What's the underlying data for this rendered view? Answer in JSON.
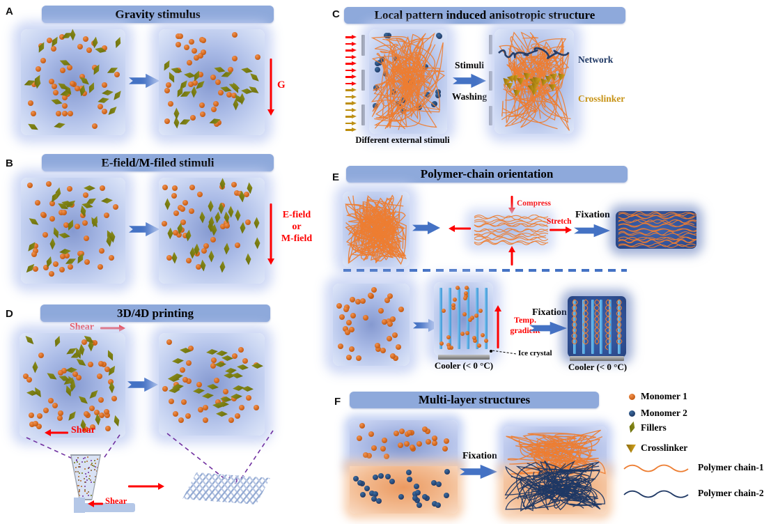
{
  "panels": {
    "A": {
      "id": "A",
      "title": "Gravity stimulus",
      "gravity_label": "G"
    },
    "B": {
      "id": "B",
      "title": "E-field/M-filed stimuli",
      "field_lines": [
        "E-field",
        "or",
        "M-field"
      ]
    },
    "C": {
      "id": "C",
      "title": "Local pattern induced anisotropic structure",
      "stimuli_label": "Stimuli",
      "washing_label": "Washing",
      "network_label": "Network",
      "crosslinker_label": "Crosslinker",
      "caption": "Different external stimuli"
    },
    "D": {
      "id": "D",
      "title": "3D/4D printing",
      "shear_top": "Shear",
      "shear_bottom": "Shear",
      "shear_nozzle": "Shear"
    },
    "E": {
      "id": "E",
      "title": "Polymer-chain orientation",
      "compress_label": "Compress",
      "stretch_label": "Stretch",
      "fixation_label_top": "Fixation",
      "fixation_label_bottom": "Fixation",
      "temp_lines": [
        "Temp.",
        "gradient"
      ],
      "ice_label": "Ice crystal",
      "cooler_label_mid": "Cooler (< 0 °C)",
      "cooler_label_right": "Cooler (< 0 °C)"
    },
    "F": {
      "id": "F",
      "title": "Multi-layer structures",
      "fixation_label": "Fixation"
    }
  },
  "legend": {
    "items": [
      {
        "icon": "monomer1-dot",
        "label": "Monomer 1"
      },
      {
        "icon": "monomer2-dot",
        "label": "Monomer 2"
      },
      {
        "icon": "filler-diamond",
        "label": "Fillers"
      },
      {
        "icon": "crosslinker-triangle",
        "label": "Crosslinker"
      },
      {
        "icon": "polymer-chain-1-line",
        "label": "Polymer chain-1"
      },
      {
        "icon": "polymer-chain-2-line",
        "label": "Polymer chain-2"
      }
    ]
  },
  "colors": {
    "header_bar": "#8ea9db",
    "arrow_blue": "#4472c4",
    "stimulus_red": "#fe0000",
    "stimulus_gold": "#bd8d0a",
    "monomer1": "#c55a11",
    "monomer2": "#1f3864",
    "filler": "#77790e",
    "crosslinker": "#c79316",
    "chain1": "#ed7d31",
    "chain2": "#1f3864",
    "ice": "#55abdf",
    "dashed_purple": "#7030a0"
  }
}
